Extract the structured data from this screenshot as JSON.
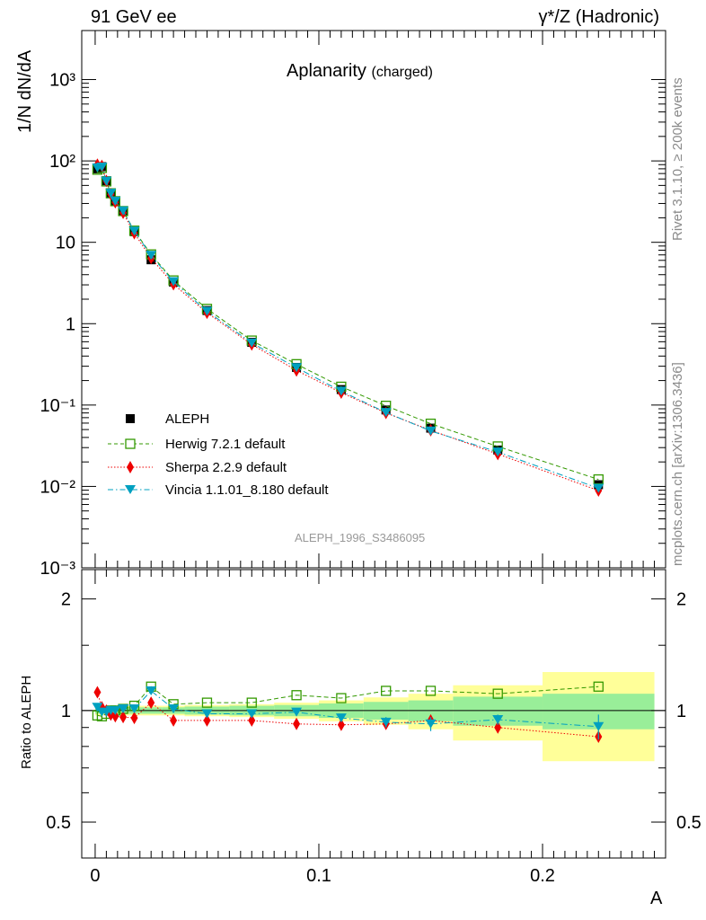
{
  "header": {
    "left": "91 GeV ee",
    "right": "γ*/Z (Hadronic)"
  },
  "side_text": {
    "upper": "Rivet 3.1.10, ≥ 200k events",
    "lower": "mcplots.cern.ch [arXiv:1306.3436]"
  },
  "chart_data": {
    "type": "line",
    "title": "Aplanarity",
    "subtitle": "(charged)",
    "analysis": "ALEPH_1996_S3486095",
    "xlabel": "A",
    "ylabel": "1/N dN/dA",
    "ratio_ylabel": "Ratio to ALEPH",
    "xlim": [
      -0.006,
      0.255
    ],
    "ylim": [
      0.001,
      4000
    ],
    "ylog": true,
    "ratio_ylim": [
      0.4,
      2.4
    ],
    "x_ticks": [
      "0",
      "0.1",
      "0.2"
    ],
    "y_ticks": [
      "10⁻³",
      "10⁻²",
      "10⁻¹",
      "1",
      "10",
      "10²",
      "10³"
    ],
    "ratio_ticks": [
      "0.5",
      "1",
      "2"
    ],
    "legend_position": "lower-left",
    "x": [
      0.001,
      0.003,
      0.005,
      0.007,
      0.009,
      0.0125,
      0.0175,
      0.025,
      0.035,
      0.05,
      0.07,
      0.09,
      0.11,
      0.13,
      0.15,
      0.18,
      0.225
    ],
    "bin_edges": [
      0,
      0.002,
      0.004,
      0.006,
      0.008,
      0.01,
      0.015,
      0.02,
      0.03,
      0.04,
      0.06,
      0.08,
      0.1,
      0.12,
      0.14,
      0.16,
      0.2,
      0.25
    ],
    "band_inner": [
      0.02,
      0.02,
      0.02,
      0.02,
      0.02,
      0.02,
      0.02,
      0.02,
      0.02,
      0.025,
      0.03,
      0.035,
      0.045,
      0.055,
      0.065,
      0.09,
      0.11
    ],
    "band_outer": [
      0.03,
      0.03,
      0.03,
      0.03,
      0.03,
      0.03,
      0.03,
      0.03,
      0.03,
      0.035,
      0.04,
      0.05,
      0.065,
      0.085,
      0.11,
      0.17,
      0.27
    ],
    "series": [
      {
        "name": "ALEPH",
        "color": "#000000",
        "marker": "square-filled",
        "values": [
          80,
          85,
          57,
          40,
          32,
          24,
          13.5,
          6.1,
          3.25,
          1.45,
          0.59,
          0.29,
          0.155,
          0.087,
          0.052,
          0.028,
          0.0105
        ]
      },
      {
        "name": "Herwig 7.2.1 default",
        "color": "#339900",
        "marker": "square-open",
        "values": [
          78,
          82,
          56,
          40,
          32,
          24.2,
          13.9,
          7.1,
          3.4,
          1.52,
          0.62,
          0.318,
          0.168,
          0.098,
          0.059,
          0.031,
          0.0122
        ]
      },
      {
        "name": "Sherpa 2.2.9 default",
        "color": "#ee0000",
        "marker": "diamond",
        "values": [
          90,
          87,
          57,
          39,
          31,
          23,
          12.9,
          6.4,
          3.05,
          1.36,
          0.555,
          0.266,
          0.142,
          0.08,
          0.049,
          0.025,
          0.0089
        ]
      },
      {
        "name": "Vincia 1.1.01_8.180 default",
        "color": "#00a0c0",
        "marker": "triangle-down",
        "values": [
          82,
          84,
          56.5,
          40,
          32,
          24.3,
          13.7,
          6.9,
          3.28,
          1.42,
          0.58,
          0.288,
          0.148,
          0.081,
          0.048,
          0.0265,
          0.0095
        ]
      }
    ],
    "ratio_series": [
      {
        "name": "Herwig 7.2.1 default",
        "values": [
          0.97,
          0.965,
          0.98,
          1.0,
          1.0,
          1.01,
          1.03,
          1.16,
          1.04,
          1.05,
          1.05,
          1.1,
          1.08,
          1.13,
          1.13,
          1.11,
          1.16
        ]
      },
      {
        "name": "Sherpa 2.2.9 default",
        "values": [
          1.12,
          1.02,
          1.0,
          0.975,
          0.965,
          0.96,
          0.955,
          1.05,
          0.94,
          0.94,
          0.94,
          0.92,
          0.915,
          0.92,
          0.94,
          0.9,
          0.85
        ]
      },
      {
        "name": "Vincia 1.1.01_8.180 default",
        "values": [
          1.02,
          0.99,
          0.99,
          1.0,
          1.0,
          1.01,
          1.01,
          1.13,
          1.01,
          0.98,
          0.98,
          0.99,
          0.955,
          0.93,
          0.92,
          0.945,
          0.905
        ],
        "errors": [
          0.005,
          0.005,
          0.005,
          0.005,
          0.005,
          0.005,
          0.005,
          0.01,
          0.01,
          0.01,
          0.01,
          0.015,
          0.02,
          0.03,
          0.04,
          0.03,
          0.07
        ]
      }
    ]
  }
}
